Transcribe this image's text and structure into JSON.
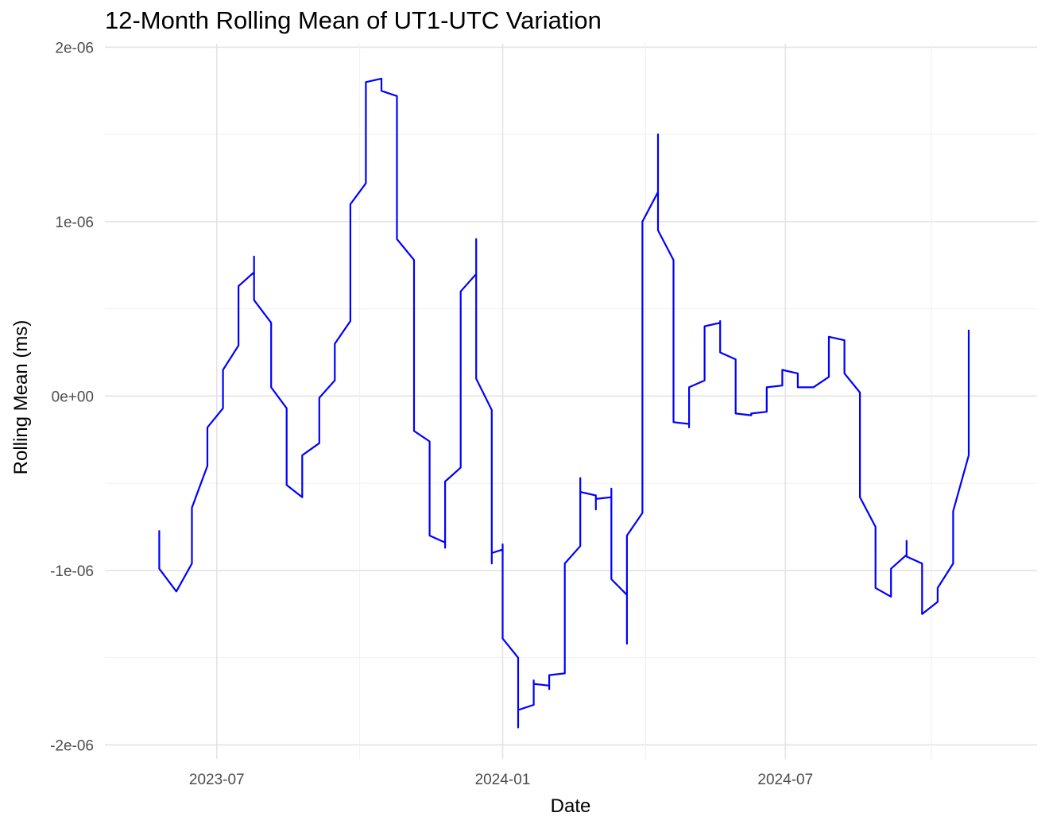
{
  "chart_data": {
    "type": "line",
    "title": "12-Month Rolling Mean of UT1-UTC Variation",
    "xlabel": "Date",
    "ylabel": "Rolling Mean (ms)",
    "x_tick_labels": [
      "2023-07",
      "2024-01",
      "2024-07"
    ],
    "y_tick_labels": [
      "-2e-06",
      "-1e-06",
      "0e+00",
      "1e-06",
      "2e-06"
    ],
    "y_ticks": [
      -2e-06,
      -1e-06,
      0,
      1e-06,
      2e-06
    ],
    "ylim": [
      -2.08e-06,
      2.02e-06
    ],
    "xlim": [
      "2023-04-20",
      "2024-12-10"
    ],
    "grid": true,
    "line_color": "#0000ff",
    "series": [
      {
        "points": [
          [
            "2023-05-25",
            -7.7e-07
          ],
          [
            "2023-05-25",
            -9.9e-07
          ],
          [
            "2023-06-05",
            -1.12e-06
          ],
          [
            "2023-06-15",
            -9.6e-07
          ],
          [
            "2023-06-15",
            -6.4e-07
          ],
          [
            "2023-06-25",
            -4e-07
          ],
          [
            "2023-06-25",
            -1.8e-07
          ],
          [
            "2023-07-05",
            -7e-08
          ],
          [
            "2023-07-05",
            1.5e-07
          ],
          [
            "2023-07-15",
            2.9e-07
          ],
          [
            "2023-07-15",
            6.3e-07
          ],
          [
            "2023-07-25",
            7.1e-07
          ],
          [
            "2023-07-25",
            8e-07
          ],
          [
            "2023-07-25",
            5.5e-07
          ],
          [
            "2023-08-05",
            4.2e-07
          ],
          [
            "2023-08-05",
            5e-08
          ],
          [
            "2023-08-15",
            -7e-08
          ],
          [
            "2023-08-15",
            -5.1e-07
          ],
          [
            "2023-08-25",
            -5.8e-07
          ],
          [
            "2023-08-25",
            -3.4e-07
          ],
          [
            "2023-09-05",
            -2.7e-07
          ],
          [
            "2023-09-05",
            -1e-08
          ],
          [
            "2023-09-15",
            9e-08
          ],
          [
            "2023-09-15",
            3e-07
          ],
          [
            "2023-09-25",
            4.3e-07
          ],
          [
            "2023-09-25",
            1.1e-06
          ],
          [
            "2023-10-05",
            1.22e-06
          ],
          [
            "2023-10-05",
            1.8e-06
          ],
          [
            "2023-10-15",
            1.82e-06
          ],
          [
            "2023-10-15",
            1.75e-06
          ],
          [
            "2023-10-25",
            1.72e-06
          ],
          [
            "2023-10-25",
            9e-07
          ],
          [
            "2023-11-05",
            7.8e-07
          ],
          [
            "2023-11-05",
            -2e-07
          ],
          [
            "2023-11-15",
            -2.6e-07
          ],
          [
            "2023-11-15",
            -8e-07
          ],
          [
            "2023-11-25",
            -8.4e-07
          ],
          [
            "2023-11-25",
            -8.7e-07
          ],
          [
            "2023-11-25",
            -4.9e-07
          ],
          [
            "2023-12-05",
            -4.1e-07
          ],
          [
            "2023-12-05",
            6e-07
          ],
          [
            "2023-12-15",
            7e-07
          ],
          [
            "2023-12-15",
            9e-07
          ],
          [
            "2023-12-15",
            1e-07
          ],
          [
            "2023-12-25",
            -8e-08
          ],
          [
            "2023-12-25",
            -9.6e-07
          ],
          [
            "2023-12-25",
            -9e-07
          ],
          [
            "2024-01-01",
            -8.8e-07
          ],
          [
            "2024-01-01",
            -8.5e-07
          ],
          [
            "2024-01-01",
            -1.39e-06
          ],
          [
            "2024-01-11",
            -1.5e-06
          ],
          [
            "2024-01-11",
            -1.9e-06
          ],
          [
            "2024-01-11",
            -1.8e-06
          ],
          [
            "2024-01-21",
            -1.77e-06
          ],
          [
            "2024-01-21",
            -1.63e-06
          ],
          [
            "2024-01-21",
            -1.65e-06
          ],
          [
            "2024-01-31",
            -1.66e-06
          ],
          [
            "2024-01-31",
            -1.68e-06
          ],
          [
            "2024-01-31",
            -1.6e-06
          ],
          [
            "2024-02-10",
            -1.59e-06
          ],
          [
            "2024-02-10",
            -9.6e-07
          ],
          [
            "2024-02-20",
            -8.6e-07
          ],
          [
            "2024-02-20",
            -4.7e-07
          ],
          [
            "2024-02-20",
            -5.5e-07
          ],
          [
            "2024-03-01",
            -5.7e-07
          ],
          [
            "2024-03-01",
            -6.5e-07
          ],
          [
            "2024-03-01",
            -5.9e-07
          ],
          [
            "2024-03-11",
            -5.8e-07
          ],
          [
            "2024-03-11",
            -5.3e-07
          ],
          [
            "2024-03-11",
            -1.05e-06
          ],
          [
            "2024-03-21",
            -1.14e-06
          ],
          [
            "2024-03-21",
            -1.42e-06
          ],
          [
            "2024-03-21",
            -8e-07
          ],
          [
            "2024-03-31",
            -6.7e-07
          ],
          [
            "2024-03-31",
            1e-06
          ],
          [
            "2024-04-10",
            1.17e-06
          ],
          [
            "2024-04-10",
            1.5e-06
          ],
          [
            "2024-04-10",
            9.5e-07
          ],
          [
            "2024-04-20",
            7.8e-07
          ],
          [
            "2024-04-20",
            -1.5e-07
          ],
          [
            "2024-04-30",
            -1.6e-07
          ],
          [
            "2024-04-30",
            -1.8e-07
          ],
          [
            "2024-04-30",
            5e-08
          ],
          [
            "2024-05-10",
            9e-08
          ],
          [
            "2024-05-10",
            4e-07
          ],
          [
            "2024-05-20",
            4.2e-07
          ],
          [
            "2024-05-20",
            4.3e-07
          ],
          [
            "2024-05-20",
            2.5e-07
          ],
          [
            "2024-05-30",
            2.1e-07
          ],
          [
            "2024-05-30",
            -1e-07
          ],
          [
            "2024-06-09",
            -1.1e-07
          ],
          [
            "2024-06-09",
            -1e-07
          ],
          [
            "2024-06-19",
            -9e-08
          ],
          [
            "2024-06-19",
            5e-08
          ],
          [
            "2024-06-29",
            6e-08
          ],
          [
            "2024-06-29",
            1.5e-07
          ],
          [
            "2024-07-09",
            1.3e-07
          ],
          [
            "2024-07-09",
            5e-08
          ],
          [
            "2024-07-19",
            5e-08
          ],
          [
            "2024-07-29",
            1.1e-07
          ],
          [
            "2024-07-29",
            3.4e-07
          ],
          [
            "2024-08-08",
            3.2e-07
          ],
          [
            "2024-08-08",
            1.3e-07
          ],
          [
            "2024-08-18",
            2e-08
          ],
          [
            "2024-08-18",
            -5.8e-07
          ],
          [
            "2024-08-28",
            -7.5e-07
          ],
          [
            "2024-08-28",
            -1.1e-06
          ],
          [
            "2024-09-07",
            -1.15e-06
          ],
          [
            "2024-09-07",
            -9.9e-07
          ],
          [
            "2024-09-17",
            -9.1e-07
          ],
          [
            "2024-09-17",
            -8.3e-07
          ],
          [
            "2024-09-17",
            -9.2e-07
          ],
          [
            "2024-09-27",
            -9.6e-07
          ],
          [
            "2024-09-27",
            -1.25e-06
          ],
          [
            "2024-10-07",
            -1.18e-06
          ],
          [
            "2024-10-07",
            -1.1e-06
          ],
          [
            "2024-10-17",
            -9.6e-07
          ],
          [
            "2024-10-17",
            -6.6e-07
          ],
          [
            "2024-10-27",
            -3.4e-07
          ],
          [
            "2024-10-27",
            3.8e-07
          ]
        ]
      }
    ]
  }
}
